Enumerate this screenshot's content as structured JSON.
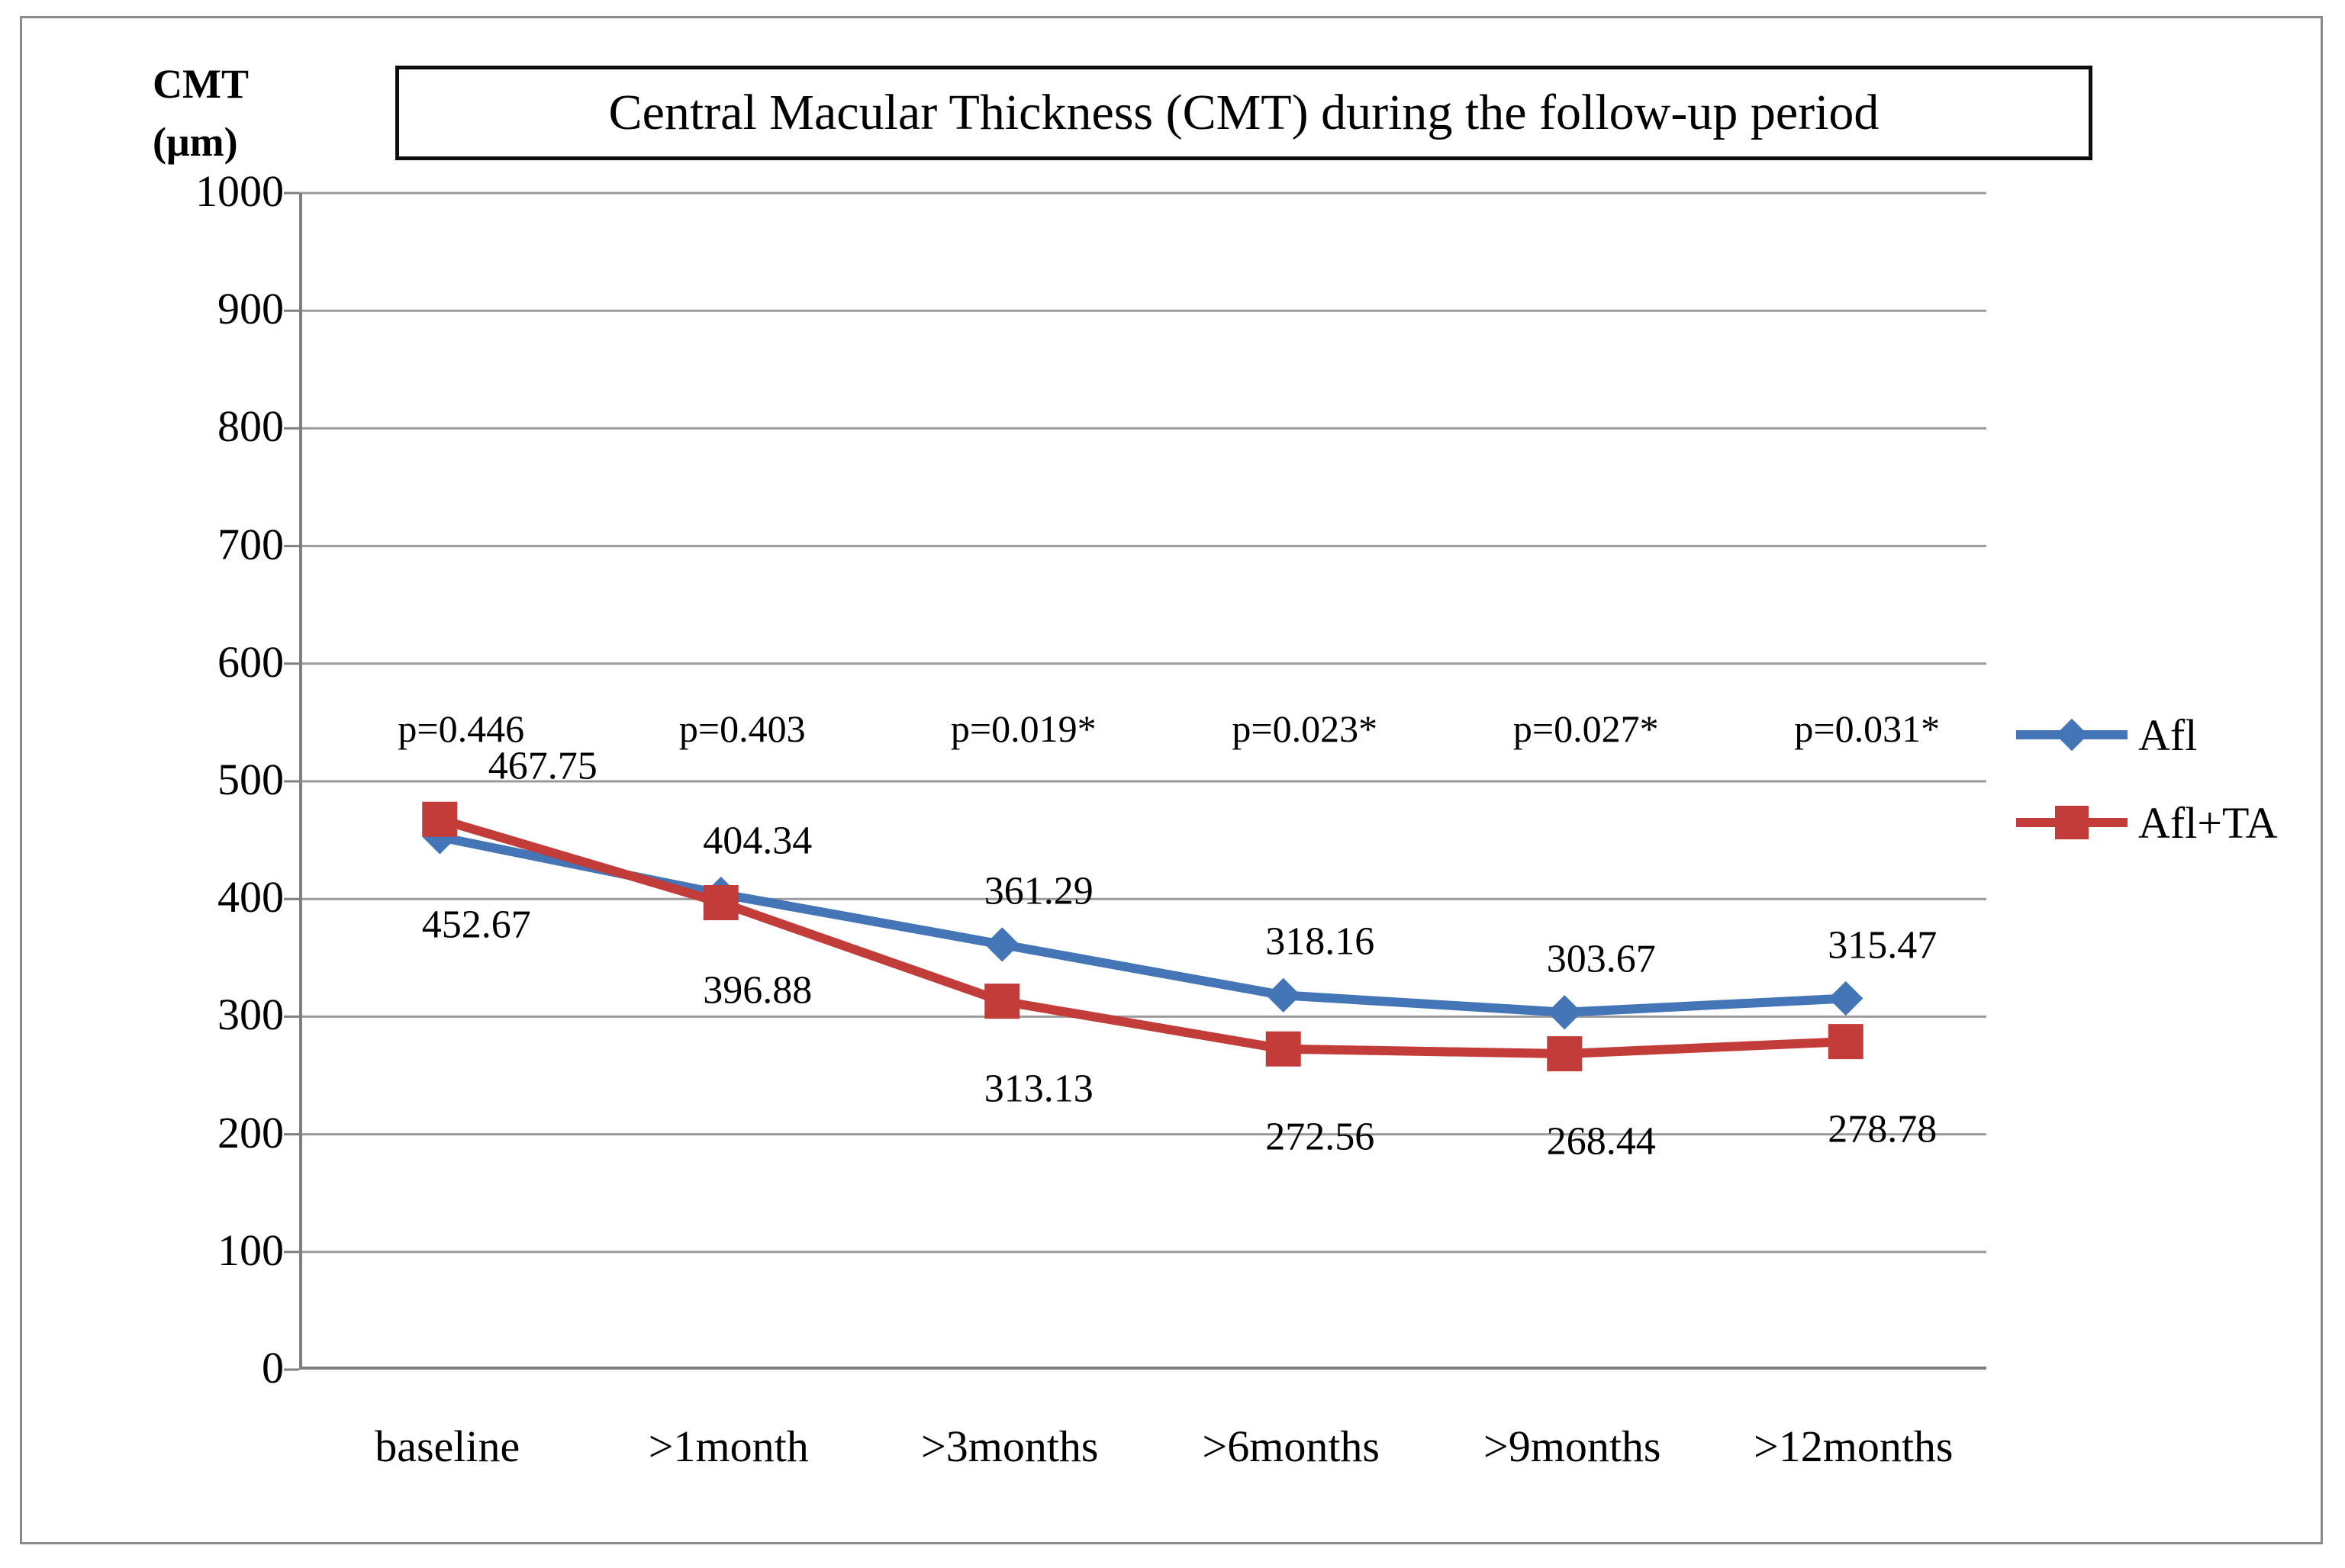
{
  "figure": {
    "title": "Central Macular Thickness (CMT) during the follow-up period",
    "y_axis_title_line1": "CMT",
    "y_axis_title_line2": "(μm)"
  },
  "legend": {
    "items": [
      {
        "label": "Afl",
        "color": "#4475b7",
        "marker": "diamond"
      },
      {
        "label": "Afl+TA",
        "color": "#c23d39",
        "marker": "square"
      }
    ]
  },
  "colors": {
    "axis": "#7f7f7f",
    "grid": "#9b9b9b",
    "outer_border": "#8a8a8a",
    "afl_blue": "#4475b7",
    "afl_ta_red": "#c23d39"
  },
  "chart_data": {
    "type": "line",
    "categories": [
      "baseline",
      ">1month",
      ">3months",
      ">6months",
      ">9months",
      ">12months"
    ],
    "series": [
      {
        "name": "Afl",
        "color": "#4475b7",
        "marker": "diamond",
        "values": [
          452.67,
          404.34,
          361.29,
          318.16,
          303.67,
          315.47
        ],
        "labels": [
          "452.67",
          "404.34",
          "361.29",
          "318.16",
          "303.67",
          "315.47"
        ],
        "label_position": [
          "below",
          "above",
          "above",
          "above",
          "above",
          "above"
        ]
      },
      {
        "name": "Afl+TA",
        "color": "#c23d39",
        "marker": "square",
        "values": [
          467.75,
          396.88,
          313.13,
          272.56,
          268.44,
          278.78
        ],
        "labels": [
          "467.75",
          "396.88",
          "313.13",
          "272.56",
          "268.44",
          "278.78"
        ],
        "label_position": [
          "above",
          "below",
          "below",
          "below",
          "below",
          "below"
        ]
      }
    ],
    "p_values": [
      "p=0.446",
      "p=0.403",
      "p=0.019*",
      "p=0.023*",
      "p=0.027*",
      "p=0.031*"
    ],
    "ylabel": "CMT (μm)",
    "ylim": [
      0,
      1000
    ],
    "ytick_step": 100,
    "ytick_labels": [
      "1000",
      "900",
      "800",
      "700",
      "600",
      "500",
      "400",
      "300",
      "200",
      "100",
      "0"
    ],
    "grid": true,
    "legend_position": "right"
  }
}
